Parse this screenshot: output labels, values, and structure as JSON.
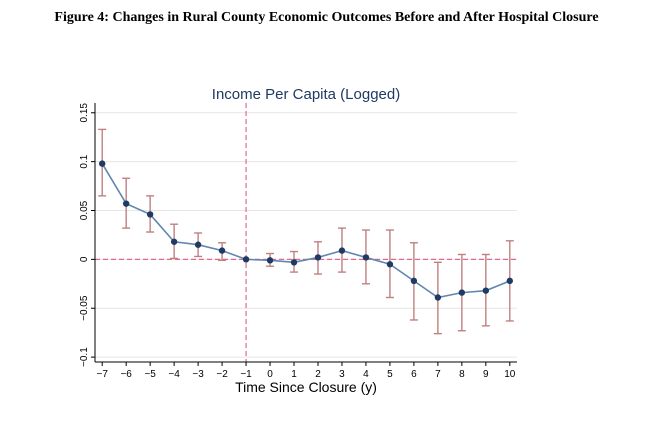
{
  "figure_title": "Figure 4: Changes in Rural County Economic Outcomes Before and After Hospital Closure",
  "chart_data": {
    "type": "line",
    "title": "Income Per Capita (Logged)",
    "xlabel": "Time Since Closure (y)",
    "ylabel": "",
    "x": [
      -7,
      -6,
      -5,
      -4,
      -3,
      -2,
      -1,
      0,
      1,
      2,
      3,
      4,
      5,
      6,
      7,
      8,
      9,
      10
    ],
    "xticks": [
      "−7",
      "−6",
      "−5",
      "−4",
      "−3",
      "−2",
      "−1",
      "0",
      "1",
      "2",
      "3",
      "4",
      "5",
      "6",
      "7",
      "8",
      "9",
      "10"
    ],
    "xlim": [
      -7.3,
      10.3
    ],
    "yticks": [
      -0.1,
      -0.05,
      0,
      0.05,
      0.1,
      0.15
    ],
    "ytick_labels": [
      "−0.1",
      "−0.05",
      "0",
      "0.05",
      "0.1",
      "0.15"
    ],
    "ylim": [
      -0.105,
      0.16
    ],
    "series": [
      {
        "values": [
          0.098,
          0.057,
          0.046,
          0.018,
          0.015,
          0.009,
          0.0,
          -0.001,
          -0.003,
          0.002,
          0.009,
          0.002,
          -0.005,
          -0.022,
          -0.039,
          -0.034,
          -0.032,
          -0.022
        ],
        "ci_lower": [
          0.065,
          0.032,
          0.028,
          0.001,
          0.003,
          -0.001,
          0.0,
          -0.007,
          -0.013,
          -0.015,
          -0.013,
          -0.025,
          -0.039,
          -0.062,
          -0.076,
          -0.073,
          -0.068,
          -0.063
        ],
        "ci_upper": [
          0.133,
          0.083,
          0.065,
          0.036,
          0.027,
          0.017,
          0.0,
          0.006,
          0.008,
          0.018,
          0.032,
          0.03,
          0.03,
          0.017,
          -0.003,
          0.005,
          0.005,
          0.019
        ]
      }
    ],
    "reference_lines": {
      "vertical_x": -1,
      "horizontal_y": 0
    },
    "colors": {
      "line": "#5f87b0",
      "marker": "#1f3a63",
      "ci": "#c08080",
      "reference": "#e0698f",
      "grid": "#e6e6e6",
      "axis": "#000000",
      "title": "#1f3a63"
    },
    "grid": true,
    "legend": "none"
  }
}
